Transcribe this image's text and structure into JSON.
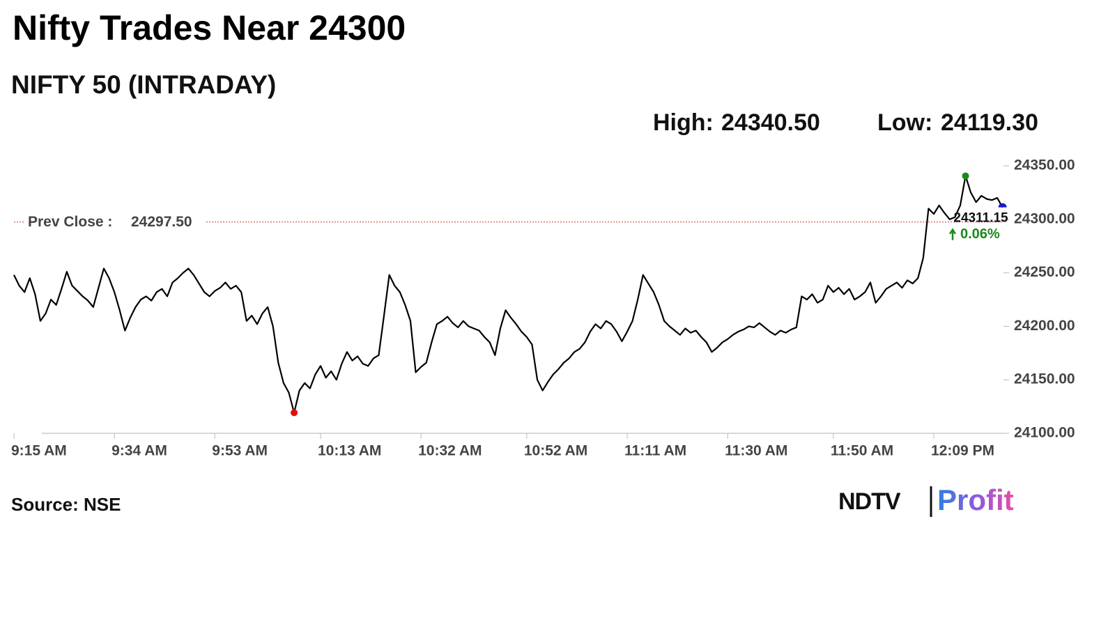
{
  "chart_data": {
    "type": "line",
    "title": "Nifty Trades Near 24300",
    "subtitle": "NIFTY 50 (INTRADAY)",
    "stats": {
      "high": {
        "label": "High:",
        "value": 24340.5,
        "value_label": "24340.50"
      },
      "low": {
        "label": "Low:",
        "value": 24119.3,
        "value_label": "24119.30"
      },
      "prev_close": {
        "label": "Prev Close :",
        "value": 24297.5,
        "value_label": "24297.50"
      },
      "last": {
        "value": 24311.15,
        "value_label": "24311.15"
      },
      "change": {
        "value": 0.06,
        "value_label": "0.06%"
      }
    },
    "categories": [
      "9:15 AM",
      null,
      null,
      null,
      null,
      null,
      null,
      null,
      null,
      null,
      null,
      null,
      null,
      null,
      null,
      null,
      null,
      null,
      null,
      "9:34 AM",
      null,
      null,
      null,
      null,
      null,
      null,
      null,
      null,
      null,
      null,
      null,
      null,
      null,
      null,
      null,
      null,
      null,
      null,
      "9:53 AM",
      null,
      null,
      null,
      null,
      null,
      null,
      null,
      null,
      null,
      null,
      null,
      null,
      null,
      null,
      null,
      null,
      null,
      null,
      null,
      "10:13 AM",
      null,
      null,
      null,
      null,
      null,
      null,
      null,
      null,
      null,
      null,
      null,
      null,
      null,
      null,
      null,
      null,
      null,
      null,
      "10:32 AM",
      null,
      null,
      null,
      null,
      null,
      null,
      null,
      null,
      null,
      null,
      null,
      null,
      null,
      null,
      null,
      null,
      null,
      null,
      null,
      "10:52 AM",
      null,
      null,
      null,
      null,
      null,
      null,
      null,
      null,
      null,
      null,
      null,
      null,
      null,
      null,
      null,
      null,
      null,
      null,
      "11:11 AM",
      null,
      null,
      null,
      null,
      null,
      null,
      null,
      null,
      null,
      null,
      null,
      null,
      null,
      null,
      null,
      null,
      null,
      null,
      "11:30 AM",
      null,
      null,
      null,
      null,
      null,
      null,
      null,
      null,
      null,
      null,
      null,
      null,
      null,
      null,
      null,
      null,
      null,
      null,
      null,
      "11:50 AM",
      null,
      null,
      null,
      null,
      null,
      null,
      null,
      null,
      null,
      null,
      null,
      null,
      null,
      null,
      null,
      null,
      null,
      null,
      "12:09 PM",
      null,
      null,
      null,
      null,
      null,
      null,
      null,
      null,
      null,
      null,
      null,
      null,
      null
    ],
    "series": [
      {
        "name": "NIFTY 50",
        "color": "#000000",
        "values": [
          24248,
          24238,
          24232,
          24245,
          24230,
          24205,
          24212,
          24225,
          24220,
          24235,
          24251,
          24238,
          24233,
          24228,
          24224,
          24218,
          24236,
          24254,
          24245,
          24232,
          24215,
          24196,
          24208,
          24218,
          24225,
          24228,
          24224,
          24232,
          24235,
          24228,
          24241,
          24245,
          24250,
          24254,
          24248,
          24240,
          24232,
          24228,
          24233,
          24236,
          24241,
          24235,
          24238,
          24232,
          24205,
          24210,
          24202,
          24212,
          24218,
          24200,
          24166,
          24147,
          24138,
          24119.3,
          24140,
          24147,
          24142,
          24155,
          24163,
          24152,
          24158,
          24150,
          24165,
          24176,
          24168,
          24172,
          24165,
          24163,
          24170,
          24173,
          24210,
          24248,
          24238,
          24232,
          24220,
          24205,
          24157,
          24162,
          24166,
          24185,
          24202,
          24205,
          24209,
          24203,
          24199,
          24205,
          24200,
          24198,
          24196,
          24190,
          24185,
          24173,
          24198,
          24215,
          24208,
          24202,
          24195,
          24190,
          24183,
          24150,
          24140,
          24148,
          24155,
          24160,
          24166,
          24170,
          24176,
          24179,
          24185,
          24195,
          24202,
          24198,
          24205,
          24202,
          24195,
          24186,
          24195,
          24205,
          24225,
          24248,
          24240,
          24232,
          24220,
          24205,
          24200,
          24196,
          24192,
          24198,
          24194,
          24196,
          24190,
          24185,
          24176,
          24180,
          24185,
          24188,
          24192,
          24195,
          24197,
          24200,
          24199,
          24203,
          24199,
          24195,
          24192,
          24196,
          24194,
          24197,
          24199,
          24228,
          24225,
          24230,
          24222,
          24225,
          24238,
          24232,
          24236,
          24230,
          24235,
          24225,
          24228,
          24232,
          24241,
          24222,
          24228,
          24235,
          24238,
          24241,
          24236,
          24243,
          24240,
          24245,
          24264,
          24310,
          24305,
          24313,
          24306,
          24300,
          24302,
          24313,
          24340.5,
          24325,
          24316,
          24322,
          24319,
          24318,
          24320,
          24311.15
        ]
      }
    ],
    "ylim": [
      24100,
      24350
    ],
    "yticks": [
      {
        "value": 24100,
        "label": "24100.00"
      },
      {
        "value": 24150,
        "label": "24150.00"
      },
      {
        "value": 24200,
        "label": "24200.00"
      },
      {
        "value": 24250,
        "label": "24250.00"
      },
      {
        "value": 24300,
        "label": "24300.00"
      },
      {
        "value": 24350,
        "label": "24350.00"
      }
    ],
    "colors": {
      "high": "#1a8a1a",
      "low": "#e01010",
      "last": "#1a1acc",
      "prev_close": "#d83030",
      "change": "#1a8a1a"
    },
    "source": "Source: NSE",
    "logo": {
      "left": "NDTV",
      "right": "Profit"
    }
  }
}
